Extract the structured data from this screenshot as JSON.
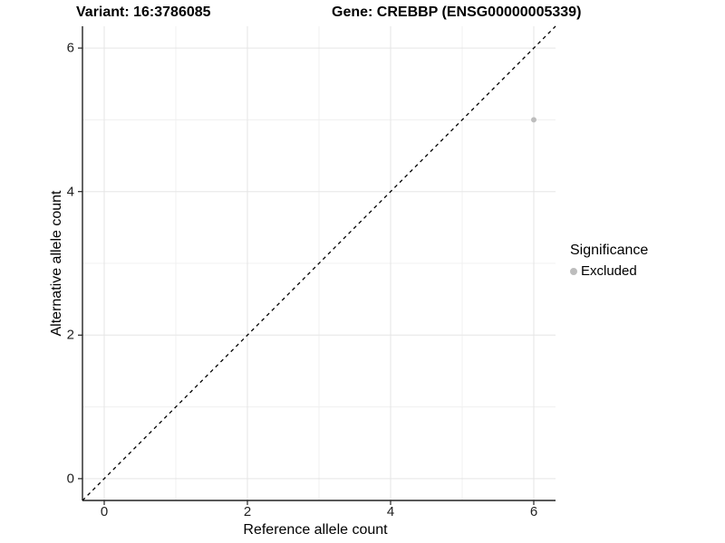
{
  "chart_data": {
    "type": "scatter",
    "title_left": "Variant: 16:3786085",
    "title_right": "Gene: CREBBP (ENSG00000005339)",
    "xlabel": "Reference allele count",
    "ylabel": "Alternative allele count",
    "xlim": [
      -0.304,
      6.304
    ],
    "ylim": [
      -0.304,
      6.304
    ],
    "x_ticks": [
      0,
      2,
      4,
      6
    ],
    "y_ticks": [
      0,
      2,
      4,
      6
    ],
    "x_minor_ticks": [
      1,
      3,
      5
    ],
    "y_minor_ticks": [
      1,
      3,
      5
    ],
    "grid": true,
    "identity_line": {
      "slope": 1,
      "intercept": 0,
      "style": "dashed",
      "color": "#000000"
    },
    "series": [
      {
        "name": "Excluded",
        "color": "#bdbdbd",
        "points": [
          {
            "x": 6,
            "y": 5
          }
        ]
      }
    ],
    "legend": {
      "title": "Significance",
      "position": "right",
      "items": [
        {
          "label": "Excluded",
          "color": "#bdbdbd"
        }
      ]
    }
  },
  "colors": {
    "background": "#ffffff",
    "major_grid": "#e5e5e5",
    "minor_grid": "#f0f0f0",
    "axis_line": "#222222",
    "tick_mark": "#222222",
    "text": "#000000"
  }
}
